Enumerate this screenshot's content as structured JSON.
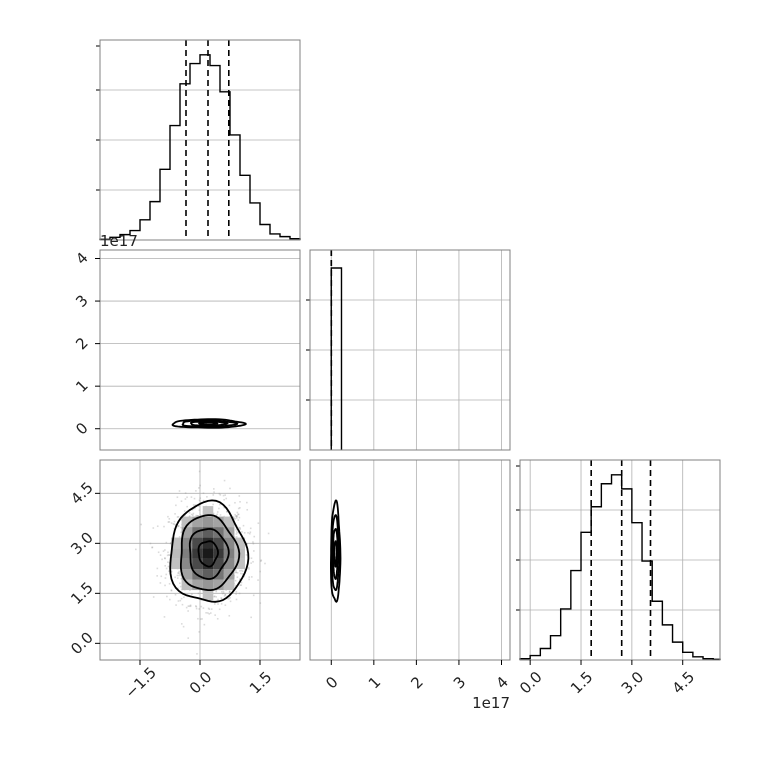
{
  "chart_data": {
    "type": "corner",
    "grid": true,
    "offset_label": "1e17",
    "panels": [
      {
        "id": "hist-param-0",
        "type": "histogram",
        "xlim": [
          -2.5,
          2.5
        ],
        "quantile_lines": [
          -0.35,
          0.2,
          0.72
        ],
        "bin_edges": [
          -2.5,
          -2.25,
          -2.0,
          -1.75,
          -1.5,
          -1.25,
          -1.0,
          -0.75,
          -0.5,
          -0.25,
          0.0,
          0.25,
          0.5,
          0.75,
          1.0,
          1.25,
          1.5,
          1.75,
          2.0,
          2.25,
          2.5
        ],
        "counts": [
          1,
          4,
          8,
          14,
          30,
          57,
          105,
          170,
          232,
          262,
          275,
          259,
          220,
          156,
          96,
          55,
          23,
          9,
          5,
          2
        ]
      },
      {
        "id": "scatter-param-1-vs-param-0",
        "type": "density_contour",
        "xlim": [
          -2.5,
          2.5
        ],
        "ylim": [
          -0.5,
          4.2
        ],
        "y_scale": "1e17",
        "center": [
          0.2,
          0.12
        ],
        "yticks": [
          "0",
          "1",
          "2",
          "3",
          "4"
        ]
      },
      {
        "id": "hist-param-1",
        "type": "histogram",
        "xlim": [
          -0.5,
          4.2
        ],
        "x_scale": "1e17",
        "quantile_lines": [
          0.0,
          0.0
        ],
        "bin_edges": [
          0.0,
          0.24
        ],
        "counts": [
          1
        ],
        "xticks": [
          "0",
          "1",
          "2",
          "3",
          "4"
        ]
      },
      {
        "id": "scatter-param-2-vs-param-0",
        "type": "density_contour",
        "xlim": [
          -2.5,
          2.5
        ],
        "ylim": [
          -0.5,
          5.5
        ],
        "center": [
          0.2,
          2.7
        ],
        "xticks": [
          "−1.5",
          "0.0",
          "1.5"
        ],
        "yticks": [
          "0.0",
          "1.5",
          "3.0",
          "4.5"
        ]
      },
      {
        "id": "scatter-param-2-vs-param-1",
        "type": "density_contour",
        "xlim": [
          -0.5,
          4.2
        ],
        "ylim": [
          -0.5,
          5.5
        ],
        "x_scale": "1e17",
        "center": [
          0.1,
          2.7
        ],
        "xticks": [
          "0",
          "1",
          "2",
          "3",
          "4"
        ]
      },
      {
        "id": "hist-param-2",
        "type": "histogram",
        "xlim": [
          -0.3,
          5.6
        ],
        "quantile_lines": [
          1.8,
          2.7,
          3.55
        ],
        "bin_edges": [
          -0.3,
          0.0,
          0.3,
          0.6,
          0.9,
          1.2,
          1.5,
          1.8,
          2.1,
          2.4,
          2.7,
          3.0,
          3.3,
          3.6,
          3.9,
          4.2,
          4.5,
          4.8,
          5.1,
          5.4,
          5.6
        ],
        "counts": [
          2,
          7,
          18,
          38,
          80,
          140,
          200,
          240,
          276,
          290,
          268,
          215,
          155,
          92,
          55,
          28,
          12,
          5,
          2,
          1
        ],
        "xticks": [
          "0.0",
          "1.5",
          "3.0",
          "4.5"
        ]
      }
    ]
  }
}
